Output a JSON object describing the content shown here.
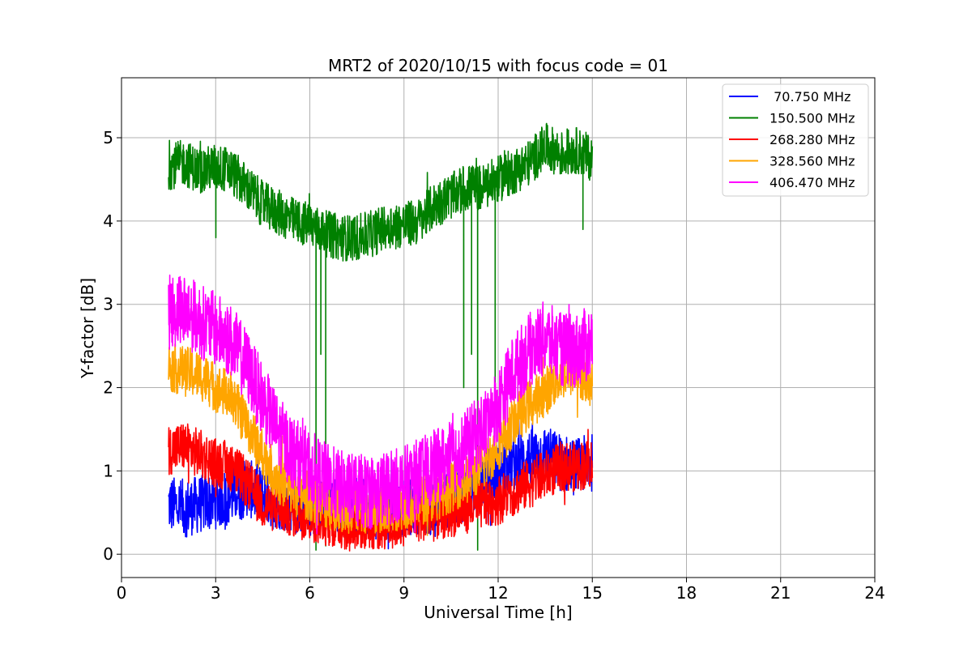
{
  "chart_data": {
    "type": "line",
    "title": "MRT2 of 2020/10/15 with focus code = 01",
    "xlabel": "Universal Time [h]",
    "ylabel": "Y-factor [dB]",
    "xlim": [
      0,
      24
    ],
    "ylim": [
      -0.28,
      5.72
    ],
    "xticks": [
      0,
      3,
      6,
      9,
      12,
      15,
      18,
      21,
      24
    ],
    "yticks": [
      0,
      1,
      2,
      3,
      4,
      5
    ],
    "grid": true,
    "legend": "top-right",
    "series": [
      {
        "name": " 70.750 MHz",
        "color": "#0000ff",
        "x": [
          1.5,
          2,
          2.5,
          3,
          3.5,
          4,
          4.5,
          5,
          5.5,
          6,
          6.5,
          7,
          7.5,
          8,
          8.5,
          9,
          9.5,
          10,
          10.5,
          11,
          11.5,
          12,
          12.5,
          13,
          13.5,
          14,
          14.5,
          15
        ],
        "values": [
          0.6,
          0.55,
          0.6,
          0.65,
          0.7,
          0.8,
          0.7,
          0.65,
          0.6,
          0.55,
          0.6,
          0.55,
          0.6,
          0.5,
          0.6,
          0.55,
          0.6,
          0.55,
          0.7,
          0.75,
          0.9,
          1.0,
          1.1,
          1.15,
          1.2,
          1.1,
          1.05,
          1.1
        ],
        "noise": 0.35
      },
      {
        "name": "150.500 MHz",
        "color": "#008000",
        "x": [
          1.5,
          2,
          2.5,
          3,
          3.5,
          4,
          4.5,
          5,
          5.5,
          6,
          6.5,
          7,
          7.5,
          8,
          8.5,
          9,
          9.5,
          10,
          10.5,
          11,
          11.5,
          12,
          12.5,
          13,
          13.5,
          14,
          14.5,
          15
        ],
        "values": [
          4.65,
          4.7,
          4.6,
          4.65,
          4.6,
          4.4,
          4.2,
          4.1,
          4.0,
          3.95,
          3.85,
          3.8,
          3.8,
          3.85,
          3.95,
          3.95,
          4.0,
          4.2,
          4.3,
          4.4,
          4.4,
          4.5,
          4.6,
          4.7,
          4.9,
          4.8,
          4.85,
          4.75
        ],
        "noise": 0.28,
        "dips": [
          [
            3.0,
            3.8
          ],
          [
            4.9,
            3.95
          ],
          [
            6.2,
            0.05
          ],
          [
            6.35,
            2.4
          ],
          [
            6.5,
            0.1
          ],
          [
            10.9,
            2.0
          ],
          [
            11.15,
            2.4
          ],
          [
            11.35,
            0.05
          ],
          [
            11.9,
            1.9
          ],
          [
            14.7,
            3.9
          ]
        ]
      },
      {
        "name": "268.280 MHz",
        "color": "#ff0000",
        "x": [
          1.5,
          2,
          2.5,
          3,
          3.5,
          4,
          4.5,
          5,
          5.5,
          6,
          6.5,
          7,
          7.5,
          8,
          8.5,
          9,
          9.5,
          10,
          10.5,
          11,
          11.5,
          12,
          12.5,
          13,
          13.5,
          14,
          14.5,
          15
        ],
        "values": [
          1.25,
          1.3,
          1.2,
          1.1,
          1.05,
          0.85,
          0.6,
          0.55,
          0.5,
          0.45,
          0.4,
          0.35,
          0.35,
          0.35,
          0.35,
          0.4,
          0.45,
          0.45,
          0.5,
          0.55,
          0.6,
          0.65,
          0.75,
          0.85,
          0.95,
          1.05,
          1.05,
          1.1
        ],
        "noise": 0.3
      },
      {
        "name": "328.560 MHz",
        "color": "#ffa500",
        "x": [
          1.5,
          2,
          2.5,
          3,
          3.5,
          4,
          4.5,
          5,
          5.5,
          6,
          6.5,
          7,
          7.5,
          8,
          8.5,
          9,
          9.5,
          10,
          10.5,
          11,
          11.5,
          12,
          12.5,
          13,
          13.5,
          14,
          14.5,
          15
        ],
        "values": [
          2.25,
          2.2,
          2.15,
          2.0,
          1.9,
          1.55,
          1.2,
          0.9,
          0.75,
          0.7,
          0.6,
          0.55,
          0.55,
          0.55,
          0.55,
          0.6,
          0.65,
          0.7,
          0.8,
          0.9,
          1.05,
          1.3,
          1.6,
          1.8,
          1.95,
          2.15,
          2.2,
          2.05
        ],
        "noise": 0.3
      },
      {
        "name": "406.470 MHz",
        "color": "#ff00ff",
        "x": [
          1.5,
          2,
          2.5,
          3,
          3.5,
          4,
          4.5,
          5,
          5.5,
          6,
          6.5,
          7,
          7.5,
          8,
          8.5,
          9,
          9.5,
          10,
          10.5,
          11,
          11.5,
          12,
          12.5,
          13,
          13.5,
          14,
          14.5,
          15
        ],
        "values": [
          2.9,
          2.95,
          2.8,
          2.7,
          2.55,
          2.25,
          1.85,
          1.45,
          1.2,
          1.05,
          0.9,
          0.8,
          0.75,
          0.75,
          0.8,
          0.85,
          0.95,
          1.05,
          1.15,
          1.3,
          1.5,
          1.8,
          2.2,
          2.45,
          2.6,
          2.45,
          2.45,
          2.55
        ],
        "noise": 0.45
      }
    ]
  }
}
